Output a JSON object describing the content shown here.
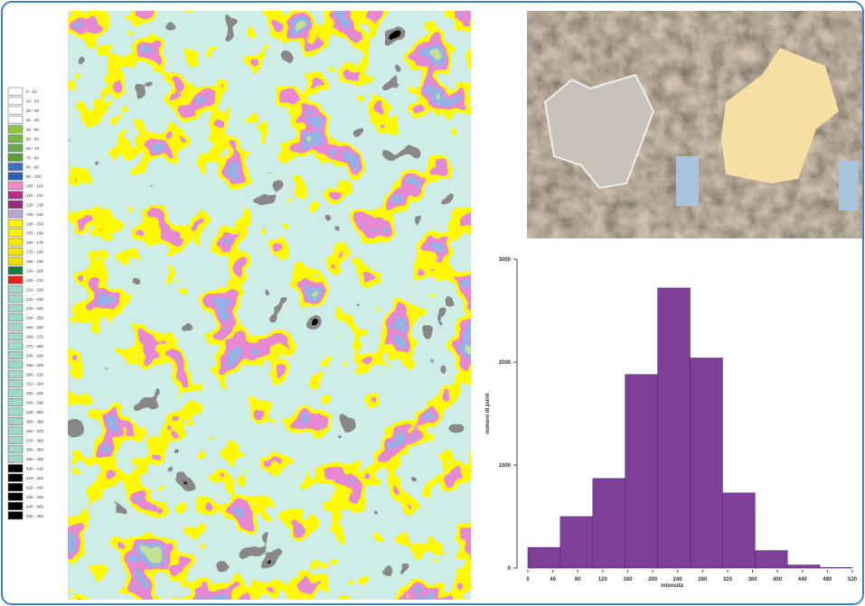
{
  "legend": {
    "items": [
      {
        "label": "0 - 10",
        "color": "#ffffff"
      },
      {
        "label": "10 - 20",
        "color": "#ffffff"
      },
      {
        "label": "20 - 30",
        "color": "#ffffff"
      },
      {
        "label": "30 - 40",
        "color": "#ffffff"
      },
      {
        "label": "40 - 50",
        "color": "#8cc63f"
      },
      {
        "label": "50 - 60",
        "color": "#7ab648"
      },
      {
        "label": "60 - 70",
        "color": "#6aa84f"
      },
      {
        "label": "70 - 80",
        "color": "#5e9e3c"
      },
      {
        "label": "80 - 90",
        "color": "#3f6fc4"
      },
      {
        "label": "90 - 100",
        "color": "#2f5fb0"
      },
      {
        "label": "100 - 110",
        "color": "#f08ac8"
      },
      {
        "label": "110 - 120",
        "color": "#b0308e"
      },
      {
        "label": "120 - 130",
        "color": "#9a2a82"
      },
      {
        "label": "130 - 140",
        "color": "#b9a6d6"
      },
      {
        "label": "140 - 150",
        "color": "#fff200"
      },
      {
        "label": "150 - 160",
        "color": "#ffee00"
      },
      {
        "label": "160 - 170",
        "color": "#fbe800"
      },
      {
        "label": "170 - 180",
        "color": "#f5e300"
      },
      {
        "label": "180 - 190",
        "color": "#efdc00"
      },
      {
        "label": "190 - 200",
        "color": "#1b7a3c"
      },
      {
        "label": "200 - 210",
        "color": "#e3231b"
      },
      {
        "label": "210 - 220",
        "color": "#9fd8cb"
      },
      {
        "label": "220 - 230",
        "color": "#9fd8cb"
      },
      {
        "label": "230 - 240",
        "color": "#9fd8cb"
      },
      {
        "label": "240 - 250",
        "color": "#9fd8cb"
      },
      {
        "label": "250 - 260",
        "color": "#9fd8cb"
      },
      {
        "label": "260 - 270",
        "color": "#9fd8cb"
      },
      {
        "label": "270 - 280",
        "color": "#9fd8cb"
      },
      {
        "label": "280 - 290",
        "color": "#9fd8cb"
      },
      {
        "label": "290 - 300",
        "color": "#9fd8cb"
      },
      {
        "label": "300 - 310",
        "color": "#9fd8cb"
      },
      {
        "label": "310 - 320",
        "color": "#9fd8cb"
      },
      {
        "label": "320 - 330",
        "color": "#9fd8cb"
      },
      {
        "label": "330 - 340",
        "color": "#9fd8cb"
      },
      {
        "label": "340 - 350",
        "color": "#9fd8cb"
      },
      {
        "label": "350 - 360",
        "color": "#9fd8cb"
      },
      {
        "label": "360 - 370",
        "color": "#9fd8cb"
      },
      {
        "label": "370 - 380",
        "color": "#9fd8cb"
      },
      {
        "label": "380 - 390",
        "color": "#9fd8cb"
      },
      {
        "label": "390 - 400",
        "color": "#9fd8cb"
      },
      {
        "label": "400 - 410",
        "color": "#000000"
      },
      {
        "label": "410 - 420",
        "color": "#000000"
      },
      {
        "label": "420 - 430",
        "color": "#000000"
      },
      {
        "label": "430 - 440",
        "color": "#000000"
      },
      {
        "label": "440 - 450",
        "color": "#000000"
      },
      {
        "label": "450 - 460",
        "color": "#000000"
      }
    ]
  },
  "chart_data": {
    "type": "histogram",
    "xlabel": "intensità",
    "ylabel": "numero di punti",
    "bins": [
      0,
      52,
      104,
      156,
      208,
      260,
      312,
      364,
      416,
      468,
      520
    ],
    "values": [
      200,
      500,
      870,
      1880,
      2720,
      2040,
      730,
      170,
      30,
      5
    ],
    "color": "#7d3f98",
    "xlim": [
      0,
      520
    ],
    "xticks": [
      0,
      40,
      80,
      120,
      160,
      200,
      240,
      280,
      320,
      360,
      400,
      440,
      480,
      520
    ],
    "ylim": [
      0,
      3000
    ],
    "yticks": [
      0,
      1000,
      2000,
      3000
    ]
  }
}
